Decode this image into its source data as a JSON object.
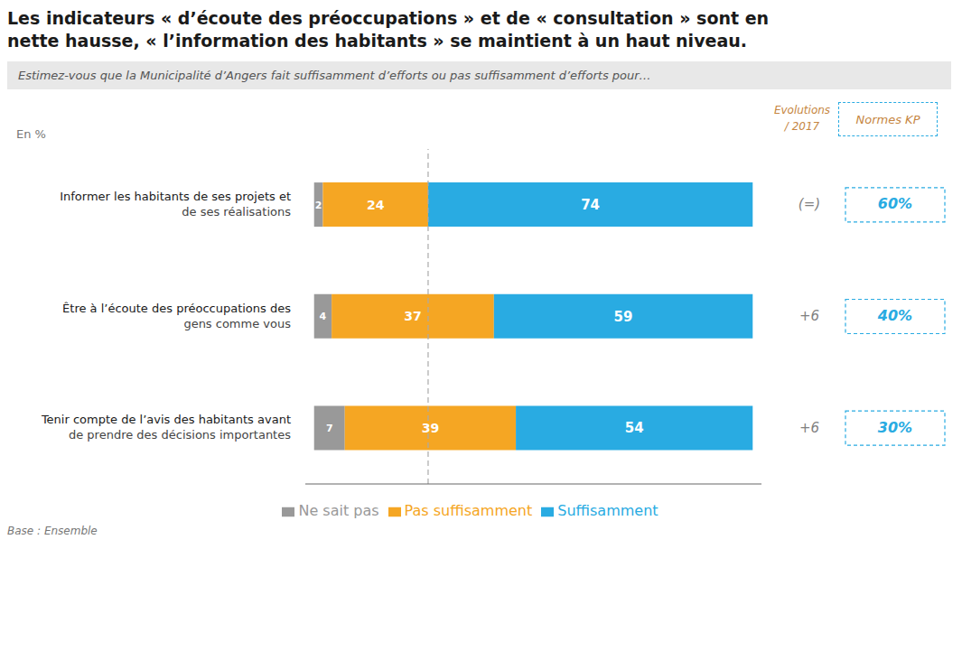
{
  "chart_data": {
    "type": "bar",
    "orientation": "horizontal",
    "stacked": true,
    "data_labels": true,
    "legend": "bottom",
    "grid": false,
    "tick_labels": "y",
    "title": "Les indicateurs « d’écoute des préoccupations » et de « consultation » sont en nette hausse, « l’information des habitants » se maintient à un haut niveau.",
    "subtitle": "Estimez-vous que la Municipalité d’Angers fait suffisamment d’efforts ou pas suffisamment d’efforts pour…",
    "annotations": [
      "En %",
      "Base : Ensemble"
    ],
    "categories": [
      "Informer les habitants de ses projets et de ses réalisations",
      "Être à l’écoute des préoccupations des gens comme vous",
      "Tenir compte de l’avis des habitants avant de prendre des décisions importantes"
    ],
    "series": [
      {
        "name": "Ne sait pas",
        "color": "#999999",
        "values": [
          2,
          4,
          7
        ]
      },
      {
        "name": "Pas suffisamment",
        "color": "#F5A623",
        "values": [
          24,
          37,
          39
        ]
      },
      {
        "name": "Suffisamment",
        "color": "#29ABE2",
        "values": [
          74,
          59,
          54
        ]
      }
    ],
    "xlim": [
      -2,
      102
    ],
    "vline": 26,
    "evolutions": {
      "header": [
        "Evolutions",
        "/ 2017"
      ],
      "labels": [
        "(=)",
        "+6",
        "+6"
      ]
    },
    "normes_kp": {
      "header": "Normes KP",
      "values": [
        60,
        40,
        30
      ],
      "value_labels": [
        "60%",
        "40%",
        "30%"
      ]
    }
  }
}
